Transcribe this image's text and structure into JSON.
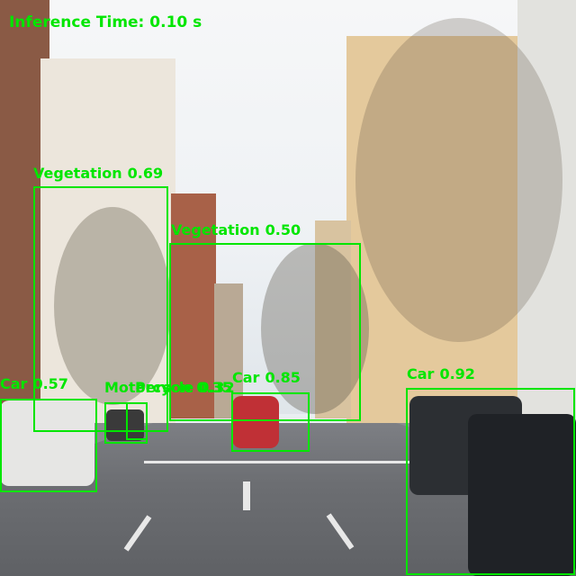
{
  "inference_label": "Inference Time: 0.10 s",
  "detections": [
    {
      "label": "Vegetation",
      "score": "0.69"
    },
    {
      "label": "Vegetation",
      "score": "0.50"
    },
    {
      "label": "Car",
      "score": "0.57"
    },
    {
      "label": "Car",
      "score": "0.85"
    },
    {
      "label": "Car",
      "score": "0.92"
    },
    {
      "label": "Motorcycle",
      "score": "0.32"
    },
    {
      "label": "Person",
      "score": "0.35"
    }
  ],
  "colors": {
    "box": "#00e600"
  }
}
